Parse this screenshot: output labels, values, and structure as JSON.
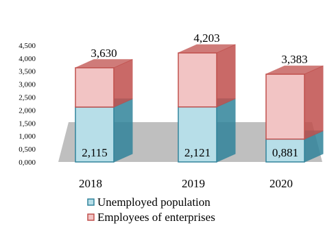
{
  "chart_data": {
    "type": "bar",
    "stacked": true,
    "style": "3d",
    "categories": [
      "2018",
      "2019",
      "2020"
    ],
    "series": [
      {
        "name": "Unemployed population",
        "values": [
          2.115,
          2.121,
          0.881
        ],
        "labels": [
          "2,115",
          "2,121",
          "0,881"
        ],
        "color": "#b7dee8",
        "edge": "#31849b"
      },
      {
        "name": "Employees of enterprises",
        "values": [
          1.515,
          2.082,
          2.502
        ],
        "labels": [
          "3,630",
          "4,203",
          "3,383"
        ],
        "color": "#f2c4c4",
        "edge": "#c0504d"
      }
    ],
    "totals": [
      3.63,
      4.203,
      3.383
    ],
    "yticks": [
      "0,000",
      "0,500",
      "1,000",
      "1,500",
      "2,000",
      "2,500",
      "3,000",
      "3,500",
      "4,000",
      "4,500"
    ],
    "ylim": [
      0,
      4.5
    ],
    "grid": false,
    "legend": "bottom",
    "floor_color": "#bfbfbf",
    "title": "",
    "xlabel": "",
    "ylabel": ""
  }
}
